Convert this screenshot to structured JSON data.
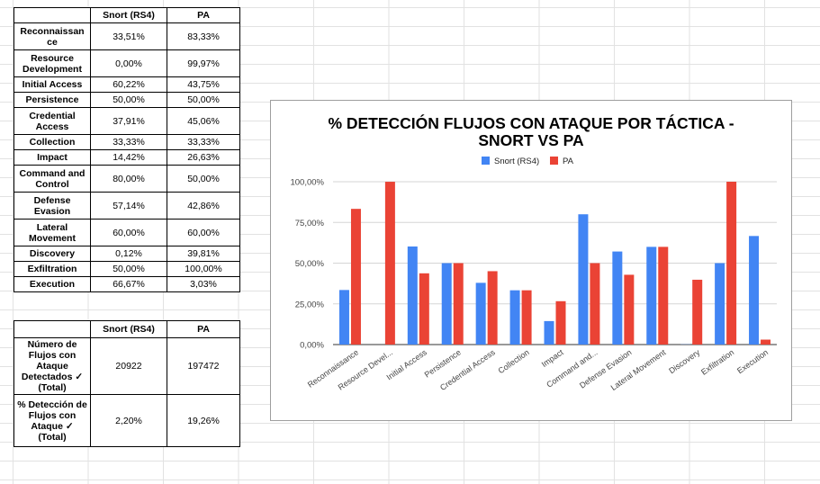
{
  "table1": {
    "headers": [
      "",
      "Snort (RS4)",
      "PA"
    ],
    "rows": [
      {
        "label": "Reconnaissan ce",
        "snort": "33,51%",
        "pa": "83,33%",
        "tall": true
      },
      {
        "label": "Resource Development",
        "snort": "0,00%",
        "pa": "99,97%",
        "tall": true
      },
      {
        "label": "Initial Access",
        "snort": "60,22%",
        "pa": "43,75%",
        "tall": false
      },
      {
        "label": "Persistence",
        "snort": "50,00%",
        "pa": "50,00%",
        "tall": false
      },
      {
        "label": "Credential Access",
        "snort": "37,91%",
        "pa": "45,06%",
        "tall": true
      },
      {
        "label": "Collection",
        "snort": "33,33%",
        "pa": "33,33%",
        "tall": false
      },
      {
        "label": "Impact",
        "snort": "14,42%",
        "pa": "26,63%",
        "tall": false
      },
      {
        "label": "Command and Control",
        "snort": "80,00%",
        "pa": "50,00%",
        "tall": true
      },
      {
        "label": "Defense Evasion",
        "snort": "57,14%",
        "pa": "42,86%",
        "tall": true
      },
      {
        "label": "Lateral Movement",
        "snort": "60,00%",
        "pa": "60,00%",
        "tall": true
      },
      {
        "label": "Discovery",
        "snort": "0,12%",
        "pa": "39,81%",
        "tall": false
      },
      {
        "label": "Exfiltration",
        "snort": "50,00%",
        "pa": "100,00%",
        "tall": false
      },
      {
        "label": "Execution",
        "snort": "66,67%",
        "pa": "3,03%",
        "tall": false
      }
    ]
  },
  "table2": {
    "headers": [
      "",
      "Snort (RS4)",
      "PA"
    ],
    "rows": [
      {
        "label": "Número de Flujos con Ataque Detectados ✓ (Total)",
        "snort": "20922",
        "pa": "197472"
      },
      {
        "label": "% Detección de Flujos con Ataque ✓ (Total)",
        "snort": "2,20%",
        "pa": "19,26%"
      }
    ]
  },
  "chart_data": {
    "type": "bar",
    "title_line1": "% DETECCIÓN FLUJOS CON ATAQUE POR TÁCTICA -",
    "title_line2": "SNORT VS PA",
    "categories": [
      "Reconnaissance",
      "Resource Devel...",
      "Initial Access",
      "Persistence",
      "Credential Access",
      "Collection",
      "Impact",
      "Command and...",
      "Defense Evasion",
      "Lateral Movement",
      "Discovery",
      "Exfiltration",
      "Execution"
    ],
    "series": [
      {
        "name": "Snort (RS4)",
        "color": "#4285f4",
        "values": [
          33.51,
          0.0,
          60.22,
          50.0,
          37.91,
          33.33,
          14.42,
          80.0,
          57.14,
          60.0,
          0.12,
          50.0,
          66.67
        ]
      },
      {
        "name": "PA",
        "color": "#ea4335",
        "values": [
          83.33,
          99.97,
          43.75,
          50.0,
          45.06,
          33.33,
          26.63,
          50.0,
          42.86,
          60.0,
          39.81,
          100.0,
          3.03
        ]
      }
    ],
    "ylim": [
      0,
      100
    ],
    "yticks": [
      0,
      25,
      50,
      75,
      100
    ],
    "ytick_labels": [
      "0,00%",
      "25,00%",
      "50,00%",
      "75,00%",
      "100,00%"
    ],
    "grid": true,
    "legend_position": "top-center"
  }
}
